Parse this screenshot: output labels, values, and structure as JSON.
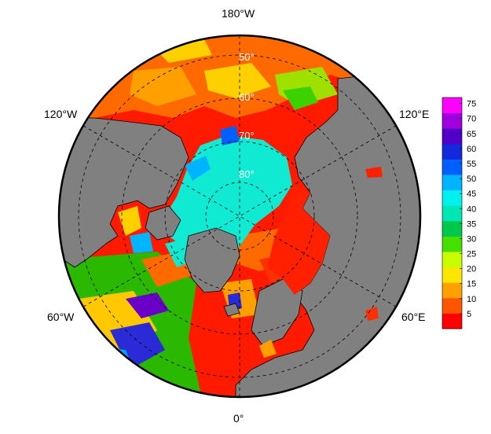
{
  "map": {
    "projection": "north-polar-stereographic",
    "longitude_labels": {
      "top": "180°W",
      "bottom": "0°",
      "upper_left": "120°W",
      "upper_right": "120°E",
      "lower_left": "60°W",
      "lower_right": "60°E"
    },
    "latitude_labels": [
      "50°",
      "60°",
      "70°",
      "80°"
    ],
    "land_color": "#808080",
    "coastline_color": "#000000"
  },
  "colorbar": {
    "ticks": [
      "75",
      "70",
      "65",
      "60",
      "55",
      "50",
      "45",
      "40",
      "35",
      "30",
      "25",
      "20",
      "15",
      "10",
      "5"
    ],
    "colors_bottom_to_top": [
      "#ff0000",
      "#ff5500",
      "#ffa000",
      "#ffe600",
      "#c8ff00",
      "#46e000",
      "#00c84b",
      "#00e6b4",
      "#00f0f0",
      "#00b4ff",
      "#0060ff",
      "#1428dc",
      "#5000c8",
      "#a000e0",
      "#ff00ff"
    ],
    "range": [
      0,
      77
    ]
  }
}
